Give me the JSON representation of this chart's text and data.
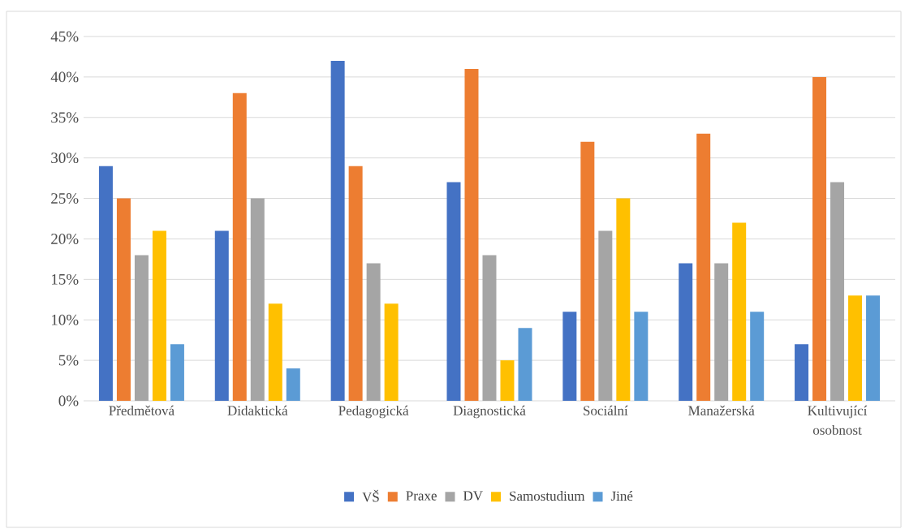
{
  "chart_data": {
    "type": "bar",
    "categories": [
      "Předmětová",
      "Didaktická",
      "Pedagogická",
      "Diagnostická",
      "Sociální",
      "Manažerská",
      "Kultivující osobnost"
    ],
    "series": [
      {
        "name": "VŠ",
        "color": "#4472c4",
        "values": [
          29,
          21,
          42,
          27,
          11,
          17,
          7
        ]
      },
      {
        "name": "Praxe",
        "color": "#ed7d31",
        "values": [
          25,
          38,
          29,
          41,
          32,
          33,
          40
        ]
      },
      {
        "name": "DV",
        "color": "#a5a5a5",
        "values": [
          18,
          25,
          17,
          18,
          21,
          17,
          27
        ]
      },
      {
        "name": "Samostudium",
        "color": "#ffc000",
        "values": [
          21,
          12,
          12,
          5,
          25,
          22,
          13
        ]
      },
      {
        "name": "Jiné",
        "color": "#5b9bd5",
        "values": [
          7,
          4,
          null,
          9,
          11,
          11,
          13
        ]
      }
    ],
    "ylim": [
      0,
      45
    ],
    "yticks": [
      {
        "value": 0,
        "label": "0%"
      },
      {
        "value": 5,
        "label": "5%"
      },
      {
        "value": 10,
        "label": "10%"
      },
      {
        "value": 15,
        "label": "15%"
      },
      {
        "value": 20,
        "label": "20%"
      },
      {
        "value": 25,
        "label": "25%"
      },
      {
        "value": 30,
        "label": "30%"
      },
      {
        "value": 35,
        "label": "35%"
      },
      {
        "value": 40,
        "label": "40%"
      },
      {
        "value": 45,
        "label": "45%"
      }
    ],
    "grid": "y",
    "legend": "bottom"
  }
}
